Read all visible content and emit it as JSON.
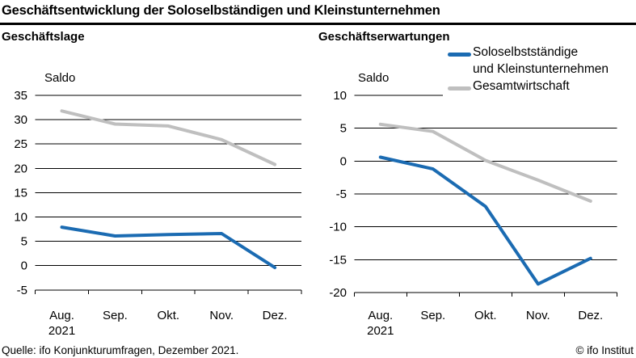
{
  "header": {
    "title": "Geschäftsentwicklung der Soloselbständigen und Kleinstunternehmen"
  },
  "legend": {
    "position": "top-right",
    "entries": [
      {
        "label_line1": "Soloselbstständige",
        "label_line2": "und Kleinstunternehmen",
        "color": "#1b6bb2"
      },
      {
        "label_line1": "Gesamtwirtschaft",
        "label_line2": "",
        "color": "#bfbfbf"
      }
    ]
  },
  "footer": {
    "source": "Quelle: ifo Konjunkturumfragen, Dezember 2021.",
    "copyright": "© ifo Institut"
  },
  "chart_data": [
    {
      "type": "line",
      "title": "Geschäftslage",
      "ylabel": "Saldo",
      "ylim": [
        -5,
        35
      ],
      "ytick_step": 5,
      "grid": true,
      "legend_position": "top-right",
      "categories": [
        "Aug. 2021",
        "Sep.",
        "Okt.",
        "Nov.",
        "Dez."
      ],
      "x_tick_labels": [
        {
          "label": "Aug.",
          "sublabel": "2021"
        },
        {
          "label": "Sep."
        },
        {
          "label": "Okt."
        },
        {
          "label": "Nov."
        },
        {
          "label": "Dez."
        }
      ],
      "series": [
        {
          "name": "Soloselbstständige und Kleinstunternehmen",
          "color": "#1b6bb2",
          "values": [
            7.9,
            6.1,
            6.4,
            6.6,
            -0.4
          ]
        },
        {
          "name": "Gesamtwirtschaft",
          "color": "#bfbfbf",
          "values": [
            31.8,
            29.1,
            28.7,
            25.9,
            20.8
          ]
        }
      ]
    },
    {
      "type": "line",
      "title": "Geschäftserwartungen",
      "ylabel": "Saldo",
      "ylim": [
        -20,
        10
      ],
      "ytick_step": 5,
      "grid": true,
      "legend_position": "top-right",
      "categories": [
        "Aug. 2021",
        "Sep.",
        "Okt.",
        "Nov.",
        "Dez."
      ],
      "x_tick_labels": [
        {
          "label": "Aug.",
          "sublabel": "2021"
        },
        {
          "label": "Sep."
        },
        {
          "label": "Okt."
        },
        {
          "label": "Nov."
        },
        {
          "label": "Dez."
        }
      ],
      "series": [
        {
          "name": "Soloselbstständige und Kleinstunternehmen",
          "color": "#1b6bb2",
          "values": [
            0.6,
            -1.2,
            -6.9,
            -18.7,
            -14.8
          ]
        },
        {
          "name": "Gesamtwirtschaft",
          "color": "#bfbfbf",
          "values": [
            5.6,
            4.5,
            0.1,
            -2.9,
            -6.1
          ]
        }
      ]
    }
  ]
}
